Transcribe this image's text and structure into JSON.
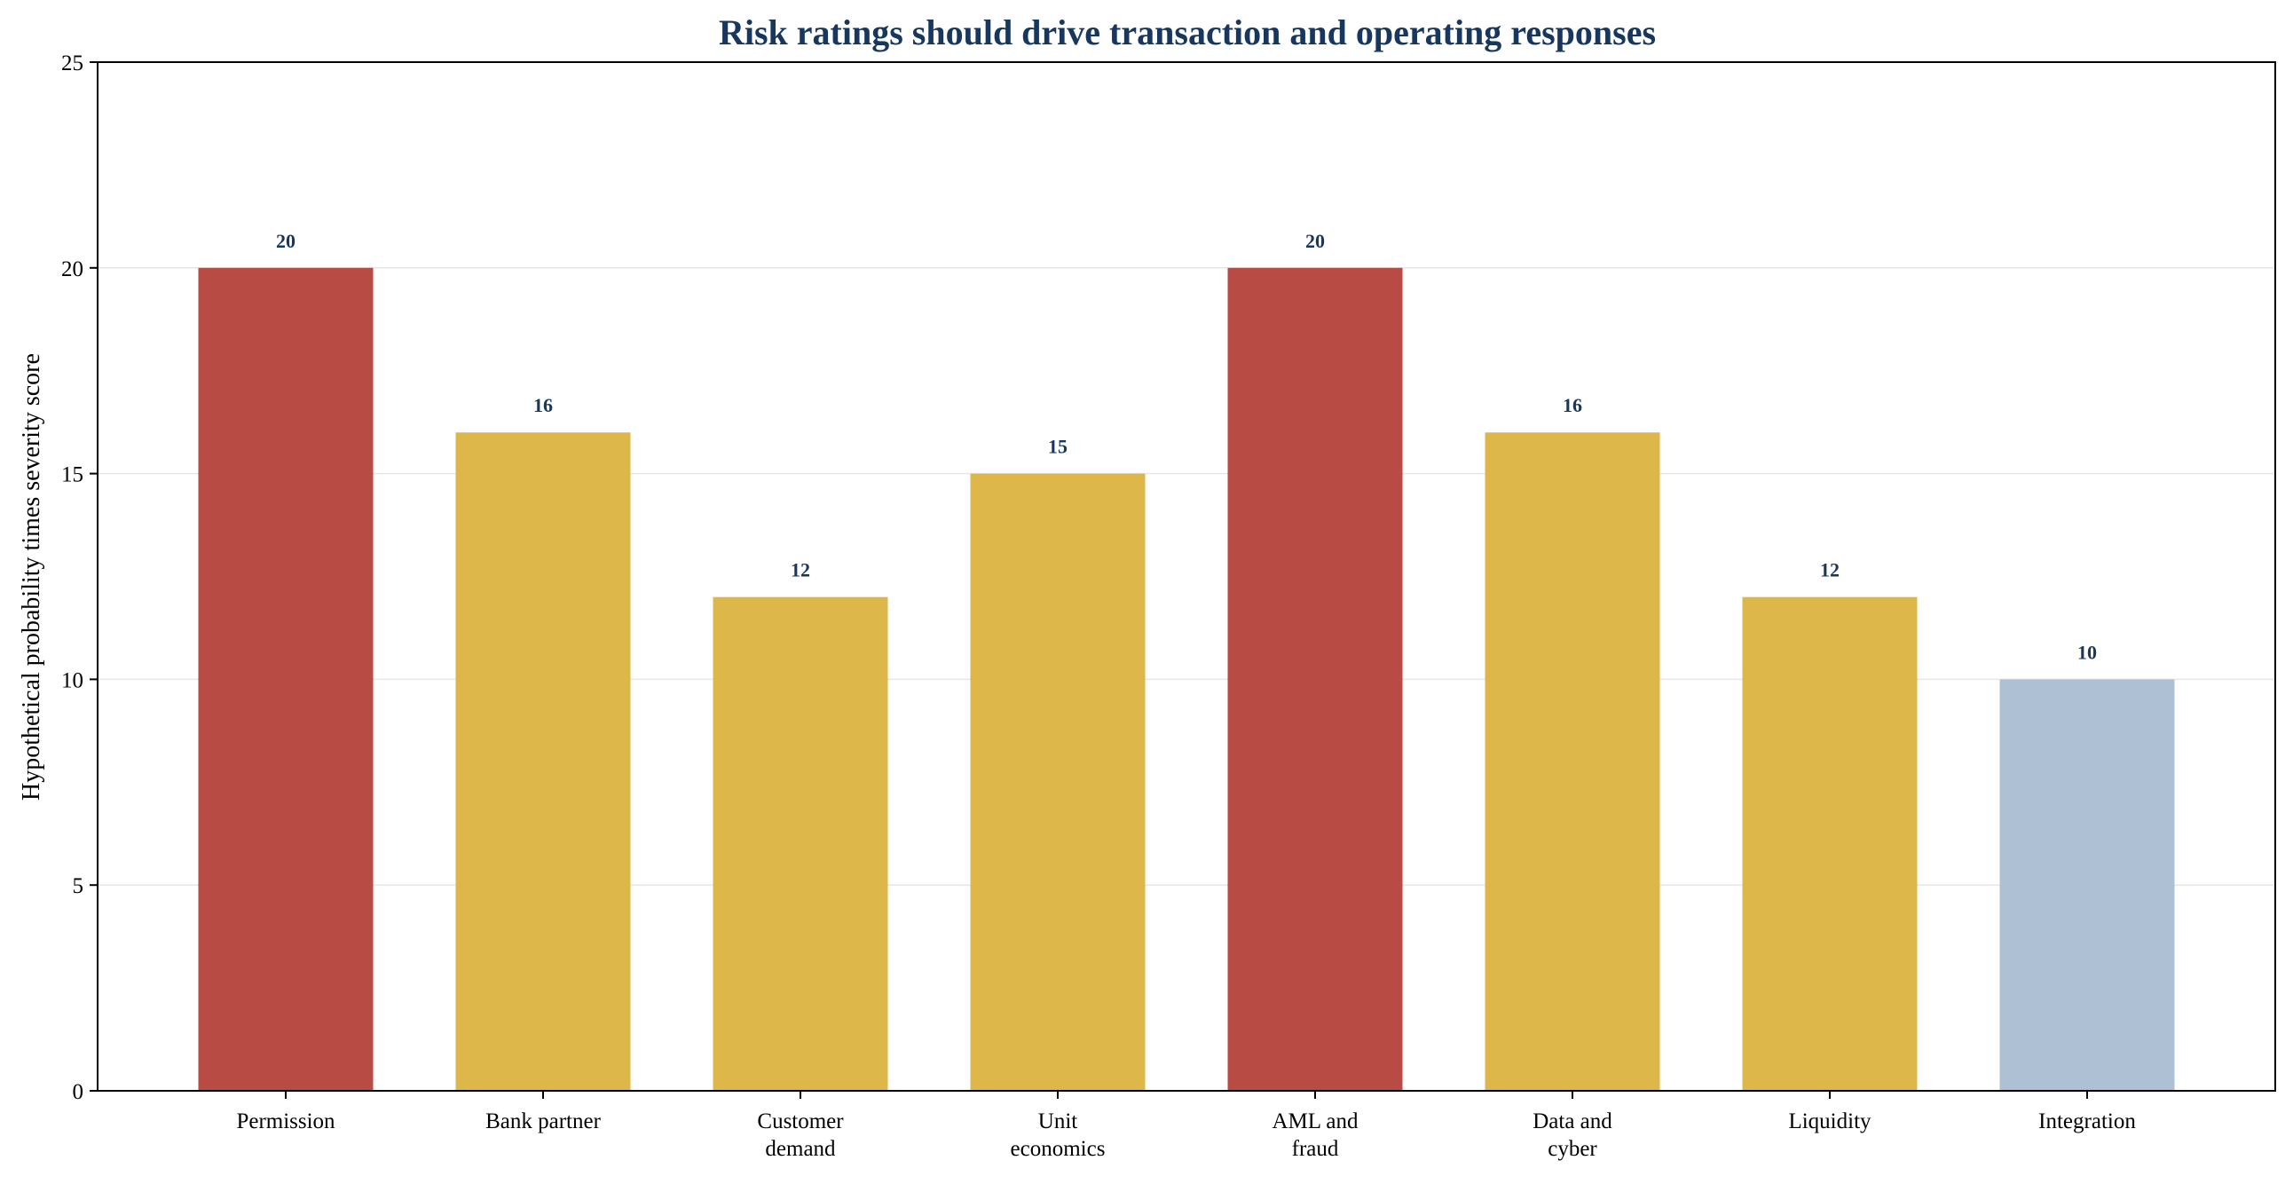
{
  "chart_data": {
    "type": "bar",
    "title": "Risk ratings should drive transaction and operating responses",
    "ylabel": "Hypothetical probability times severity score",
    "xlabel": "",
    "categories": [
      [
        "Permission"
      ],
      [
        "Bank partner"
      ],
      [
        "Customer",
        "demand"
      ],
      [
        "Unit",
        "economics"
      ],
      [
        "AML and",
        "fraud"
      ],
      [
        "Data and",
        "cyber"
      ],
      [
        "Liquidity"
      ],
      [
        "Integration"
      ]
    ],
    "values": [
      20,
      16,
      12,
      15,
      20,
      16,
      12,
      10
    ],
    "data_labels": [
      "20",
      "16",
      "12",
      "15",
      "20",
      "16",
      "12",
      "10"
    ],
    "bar_colors": [
      "#b84b43",
      "#ddb749",
      "#ddb749",
      "#ddb749",
      "#b84b43",
      "#ddb749",
      "#ddb749",
      "#aec1d4"
    ],
    "ylim": [
      0,
      25
    ],
    "yticks": [
      0,
      5,
      10,
      15,
      20,
      25
    ],
    "grid": true,
    "legend": "none",
    "colors": {
      "title": "#17375e",
      "data_label": "#17375e",
      "grid": "#e6e6e6",
      "axis": "#000000"
    }
  }
}
